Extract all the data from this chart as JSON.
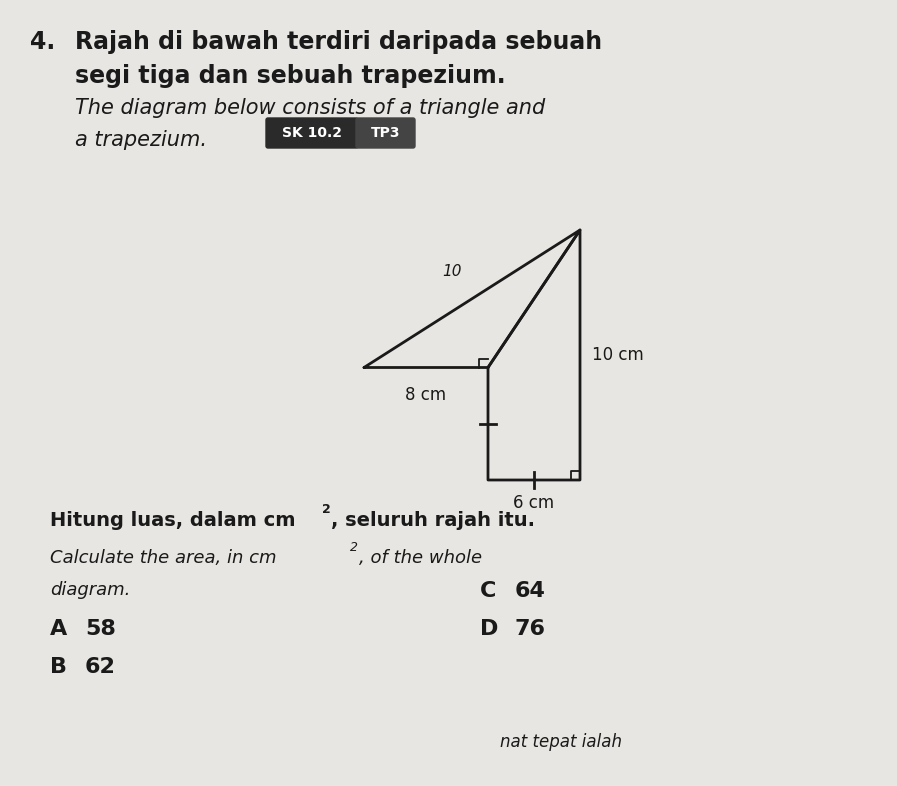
{
  "bg_color": "#e8e6e2",
  "text_color": "#1a1a1a",
  "question_number": "4.",
  "malay_line1": "Rajah di bawah terdiri daripada sebuah",
  "malay_line2": "segi tiga dan sebuah trapezium.",
  "english_line1": "The diagram below consists of a triangle and",
  "english_line2": "a trapezium.",
  "badge1_text": "SK 10.2",
  "badge1_bg": "#2a2a2a",
  "badge2_text": "TP3",
  "badge2_bg": "#444444",
  "dim_8cm": "8 cm",
  "dim_10cm": "10 cm",
  "dim_6cm": "6 cm",
  "slant_label": "10",
  "q_malay_part1": "Hitung luas, dalam cm",
  "q_malay_part2": "2",
  "q_malay_part3": ", seluruh rajah itu.",
  "q_eng_part1": "Calculate the area, in cm",
  "q_eng_part2": "2",
  "q_eng_part3": ", of the whole",
  "q_eng_line2": "diagram.",
  "options": [
    {
      "letter": "A",
      "value": "58"
    },
    {
      "letter": "B",
      "value": "62"
    },
    {
      "letter": "C",
      "value": "64"
    },
    {
      "letter": "D",
      "value": "76"
    }
  ],
  "footer": "nat tepat ialah"
}
